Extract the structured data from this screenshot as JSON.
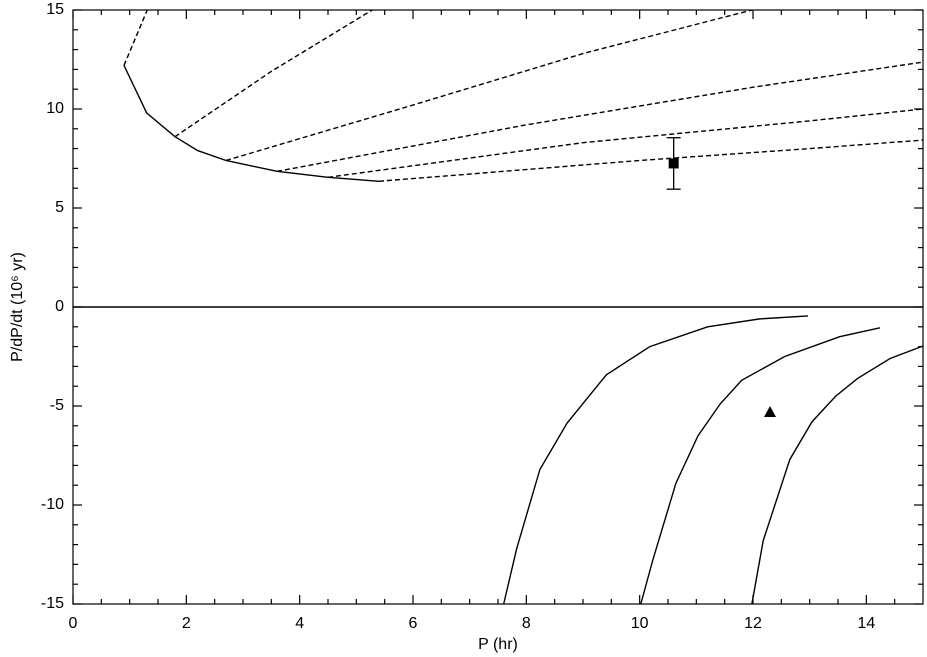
{
  "chart_data": {
    "type": "line",
    "xlabel": "P (hr)",
    "ylabel": "P/dP/dt (10⁶ yr)",
    "xlim": [
      0,
      15
    ],
    "ylim": [
      -15,
      15
    ],
    "xticks": [
      0,
      2,
      4,
      6,
      8,
      10,
      12,
      14
    ],
    "yticks": [
      -15,
      -10,
      -5,
      0,
      5,
      10,
      15
    ],
    "xminor": [
      0.5,
      1,
      1.5,
      2.5,
      3,
      3.5,
      4.5,
      5,
      5.5,
      6.5,
      7,
      7.5,
      8.5,
      9,
      9.5,
      10.5,
      11,
      11.5,
      12.5,
      13,
      13.5,
      14.5
    ],
    "yminor": [
      -14,
      -13,
      -12,
      -11,
      -9,
      -8,
      -7,
      -6,
      -4,
      -3,
      -2,
      -1,
      1,
      2,
      3,
      4,
      6,
      7,
      8,
      9,
      11,
      12,
      13,
      14
    ],
    "zero_line": true,
    "series": [
      {
        "color": "#000000",
        "dash": false,
        "x": [
          0.9,
          1.3,
          1.8,
          2.2,
          2.7,
          3.6,
          4.5,
          5.4
        ],
        "values": [
          12.2,
          9.8,
          8.6,
          7.9,
          7.4,
          6.85,
          6.55,
          6.35
        ]
      },
      {
        "color": "#000000",
        "dash": true,
        "x": [
          0.9,
          1.31
        ],
        "values": [
          12.2,
          15
        ]
      },
      {
        "color": "#000000",
        "dash": true,
        "x": [
          1.8,
          3.5,
          5.28
        ],
        "values": [
          8.6,
          11.9,
          15
        ]
      },
      {
        "color": "#000000",
        "dash": true,
        "x": [
          2.7,
          6,
          9,
          11.98
        ],
        "values": [
          7.4,
          10.2,
          12.8,
          15
        ]
      },
      {
        "color": "#000000",
        "dash": true,
        "x": [
          3.6,
          8,
          12,
          15
        ],
        "values": [
          6.85,
          9.2,
          11.1,
          12.37
        ]
      },
      {
        "color": "#000000",
        "dash": true,
        "x": [
          4.5,
          9,
          13,
          15
        ],
        "values": [
          6.55,
          8.3,
          9.4,
          10.0
        ]
      },
      {
        "color": "#000000",
        "dash": true,
        "x": [
          5.4,
          10,
          13,
          15
        ],
        "values": [
          6.35,
          7.4,
          8.0,
          8.43
        ]
      },
      {
        "color": "#000000",
        "dash": false,
        "x": [
          7.6,
          7.83,
          8.24,
          8.72,
          9.41,
          10.18,
          11.2,
          12.12,
          12.97
        ],
        "values": [
          -15,
          -12.2,
          -8.2,
          -5.86,
          -3.43,
          -2.0,
          -1.0,
          -0.6,
          -0.45
        ]
      },
      {
        "color": "#000000",
        "dash": false,
        "x": [
          10.02,
          10.23,
          10.64,
          11.03,
          11.42,
          11.8,
          12.56,
          13.53,
          14.24
        ],
        "values": [
          -15,
          -12.8,
          -8.9,
          -6.5,
          -4.9,
          -3.7,
          -2.5,
          -1.5,
          -1.05
        ]
      },
      {
        "color": "#000000",
        "dash": false,
        "x": [
          11.98,
          12.18,
          12.65,
          13.04,
          13.46,
          13.85,
          14.42,
          15
        ],
        "values": [
          -15,
          -11.8,
          -7.7,
          -5.8,
          -4.5,
          -3.6,
          -2.6,
          -1.97
        ]
      },
      {
        "color": "#000000",
        "marker": "square",
        "x": [
          10.6
        ],
        "values": [
          7.25
        ],
        "errors": [
          1.3
        ]
      },
      {
        "color": "#000000",
        "marker": "triangle",
        "x": [
          12.3
        ],
        "values": [
          -5.3
        ]
      }
    ]
  }
}
